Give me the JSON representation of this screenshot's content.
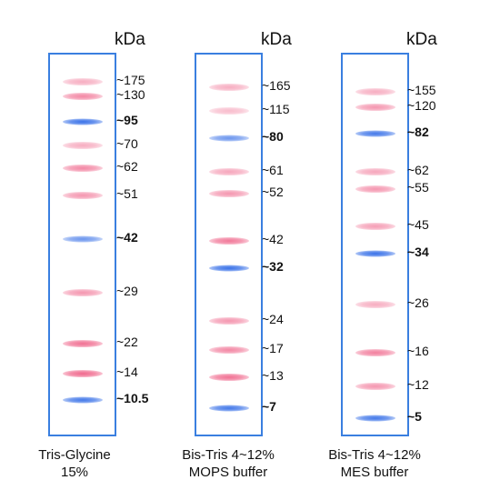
{
  "colors": {
    "lane_border": "#3a7fe0",
    "pink_band": "#f06a8e",
    "blue_band": "#3a72e8"
  },
  "ladders": [
    {
      "unit": "kDa",
      "caption_line1": "Tris-Glycine",
      "caption_line2": "15%",
      "markers": [
        {
          "label": "~175",
          "mw": 175,
          "color": "pink",
          "bold": false,
          "intensity": 0.55
        },
        {
          "label": "~130",
          "mw": 130,
          "color": "pink",
          "bold": false,
          "intensity": 0.8
        },
        {
          "label": "~95",
          "mw": 95,
          "color": "blue",
          "bold": true,
          "intensity": 1.0
        },
        {
          "label": "~70",
          "mw": 70,
          "color": "pink",
          "bold": false,
          "intensity": 0.55
        },
        {
          "label": "~62",
          "mw": 62,
          "color": "pink",
          "bold": false,
          "intensity": 0.8
        },
        {
          "label": "~51",
          "mw": 51,
          "color": "pink",
          "bold": false,
          "intensity": 0.7
        },
        {
          "label": "~42",
          "mw": 42,
          "color": "blue",
          "bold": true,
          "intensity": 0.75
        },
        {
          "label": "~29",
          "mw": 29,
          "color": "pink",
          "bold": false,
          "intensity": 0.7
        },
        {
          "label": "~22",
          "mw": 22,
          "color": "pink",
          "bold": false,
          "intensity": 0.95
        },
        {
          "label": "~14",
          "mw": 14,
          "color": "pink",
          "bold": false,
          "intensity": 1.0
        },
        {
          "label": "~10.5",
          "mw": 10.5,
          "color": "blue",
          "bold": true,
          "intensity": 0.95
        }
      ]
    },
    {
      "unit": "kDa",
      "caption_line1": "Bis-Tris 4~12%",
      "caption_line2": "MOPS buffer",
      "markers": [
        {
          "label": "~165",
          "mw": 165,
          "color": "pink",
          "bold": false,
          "intensity": 0.55
        },
        {
          "label": "~115",
          "mw": 115,
          "color": "pink",
          "bold": false,
          "intensity": 0.45
        },
        {
          "label": "~80",
          "mw": 80,
          "color": "blue",
          "bold": true,
          "intensity": 0.75
        },
        {
          "label": "~61",
          "mw": 61,
          "color": "pink",
          "bold": false,
          "intensity": 0.6
        },
        {
          "label": "~52",
          "mw": 52,
          "color": "pink",
          "bold": false,
          "intensity": 0.7
        },
        {
          "label": "~42",
          "mw": 42,
          "color": "pink",
          "bold": false,
          "intensity": 0.9
        },
        {
          "label": "~32",
          "mw": 32,
          "color": "blue",
          "bold": true,
          "intensity": 1.0
        },
        {
          "label": "~24",
          "mw": 24,
          "color": "pink",
          "bold": false,
          "intensity": 0.7
        },
        {
          "label": "~17",
          "mw": 17,
          "color": "pink",
          "bold": false,
          "intensity": 0.8
        },
        {
          "label": "~13",
          "mw": 13,
          "color": "pink",
          "bold": false,
          "intensity": 0.95
        },
        {
          "label": "~7",
          "mw": 7,
          "color": "blue",
          "bold": true,
          "intensity": 0.95
        }
      ]
    },
    {
      "unit": "kDa",
      "caption_line1": "Bis-Tris 4~12%",
      "caption_line2": "MES buffer",
      "markers": [
        {
          "label": "~155",
          "mw": 155,
          "color": "pink",
          "bold": false,
          "intensity": 0.55
        },
        {
          "label": "~120",
          "mw": 120,
          "color": "pink",
          "bold": false,
          "intensity": 0.7
        },
        {
          "label": "~82",
          "mw": 82,
          "color": "blue",
          "bold": true,
          "intensity": 0.95
        },
        {
          "label": "~62",
          "mw": 62,
          "color": "pink",
          "bold": false,
          "intensity": 0.6
        },
        {
          "label": "~55",
          "mw": 55,
          "color": "pink",
          "bold": false,
          "intensity": 0.7
        },
        {
          "label": "~45",
          "mw": 45,
          "color": "pink",
          "bold": false,
          "intensity": 0.65
        },
        {
          "label": "~34",
          "mw": 34,
          "color": "blue",
          "bold": true,
          "intensity": 1.0
        },
        {
          "label": "~26",
          "mw": 26,
          "color": "pink",
          "bold": false,
          "intensity": 0.55
        },
        {
          "label": "~16",
          "mw": 16,
          "color": "pink",
          "bold": false,
          "intensity": 0.85
        },
        {
          "label": "~12",
          "mw": 12,
          "color": "pink",
          "bold": false,
          "intensity": 0.7
        },
        {
          "label": "~5",
          "mw": 5,
          "color": "blue",
          "bold": true,
          "intensity": 0.95
        }
      ]
    }
  ]
}
